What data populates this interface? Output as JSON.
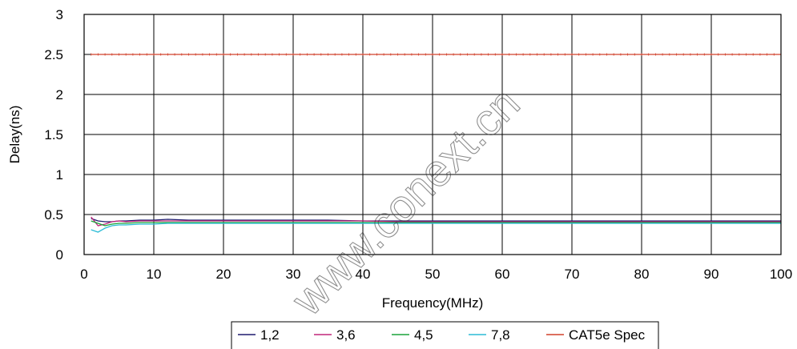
{
  "chart_data": {
    "type": "line",
    "title": "",
    "xlabel": "Frequency(MHz)",
    "ylabel": "Delay(ns)",
    "xlim": [
      0,
      100
    ],
    "ylim": [
      0,
      3
    ],
    "x_ticks": [
      0,
      10,
      20,
      30,
      40,
      50,
      60,
      70,
      80,
      90,
      100
    ],
    "y_ticks": [
      0,
      0.5,
      1,
      1.5,
      2,
      2.5,
      3
    ],
    "y_tick_labels": [
      "0",
      "0.5",
      "1",
      "1.5",
      "2",
      "2.5",
      "3"
    ],
    "grid": true,
    "legend_position": "bottom",
    "x": [
      1,
      2,
      3,
      4,
      5,
      6,
      8,
      10,
      12,
      15,
      20,
      25,
      30,
      35,
      40,
      45,
      50,
      55,
      60,
      65,
      70,
      75,
      80,
      85,
      90,
      95,
      100
    ],
    "series": [
      {
        "name": "1,2",
        "color": "#1f1a6e",
        "values": [
          0.45,
          0.42,
          0.41,
          0.41,
          0.42,
          0.42,
          0.43,
          0.43,
          0.44,
          0.43,
          0.43,
          0.43,
          0.43,
          0.43,
          0.42,
          0.42,
          0.42,
          0.42,
          0.42,
          0.42,
          0.42,
          0.42,
          0.42,
          0.42,
          0.42,
          0.42,
          0.42
        ]
      },
      {
        "name": "3,6",
        "color": "#c0267a",
        "values": [
          0.47,
          0.36,
          0.38,
          0.41,
          0.42,
          0.41,
          0.42,
          0.42,
          0.42,
          0.42,
          0.42,
          0.42,
          0.42,
          0.42,
          0.42,
          0.41,
          0.41,
          0.41,
          0.41,
          0.41,
          0.41,
          0.41,
          0.41,
          0.41,
          0.41,
          0.41,
          0.41
        ]
      },
      {
        "name": "4,5",
        "color": "#1aa33a",
        "values": [
          0.42,
          0.39,
          0.36,
          0.38,
          0.39,
          0.39,
          0.4,
          0.4,
          0.4,
          0.4,
          0.4,
          0.4,
          0.4,
          0.4,
          0.4,
          0.4,
          0.4,
          0.4,
          0.4,
          0.4,
          0.4,
          0.4,
          0.4,
          0.4,
          0.4,
          0.4,
          0.4
        ]
      },
      {
        "name": "7,8",
        "color": "#2bbcd6",
        "values": [
          0.31,
          0.28,
          0.33,
          0.36,
          0.37,
          0.37,
          0.38,
          0.38,
          0.39,
          0.39,
          0.39,
          0.39,
          0.39,
          0.39,
          0.39,
          0.39,
          0.39,
          0.39,
          0.39,
          0.39,
          0.39,
          0.39,
          0.39,
          0.39,
          0.39,
          0.39,
          0.39
        ]
      },
      {
        "name": "CAT5e Spec",
        "color": "#d0402a",
        "values": [
          2.5,
          2.5,
          2.5,
          2.5,
          2.5,
          2.5,
          2.5,
          2.5,
          2.5,
          2.5,
          2.5,
          2.5,
          2.5,
          2.5,
          2.5,
          2.5,
          2.5,
          2.5,
          2.5,
          2.5,
          2.5,
          2.5,
          2.5,
          2.5,
          2.5,
          2.5,
          2.5
        ]
      }
    ],
    "watermark": "www.conext.cn"
  }
}
